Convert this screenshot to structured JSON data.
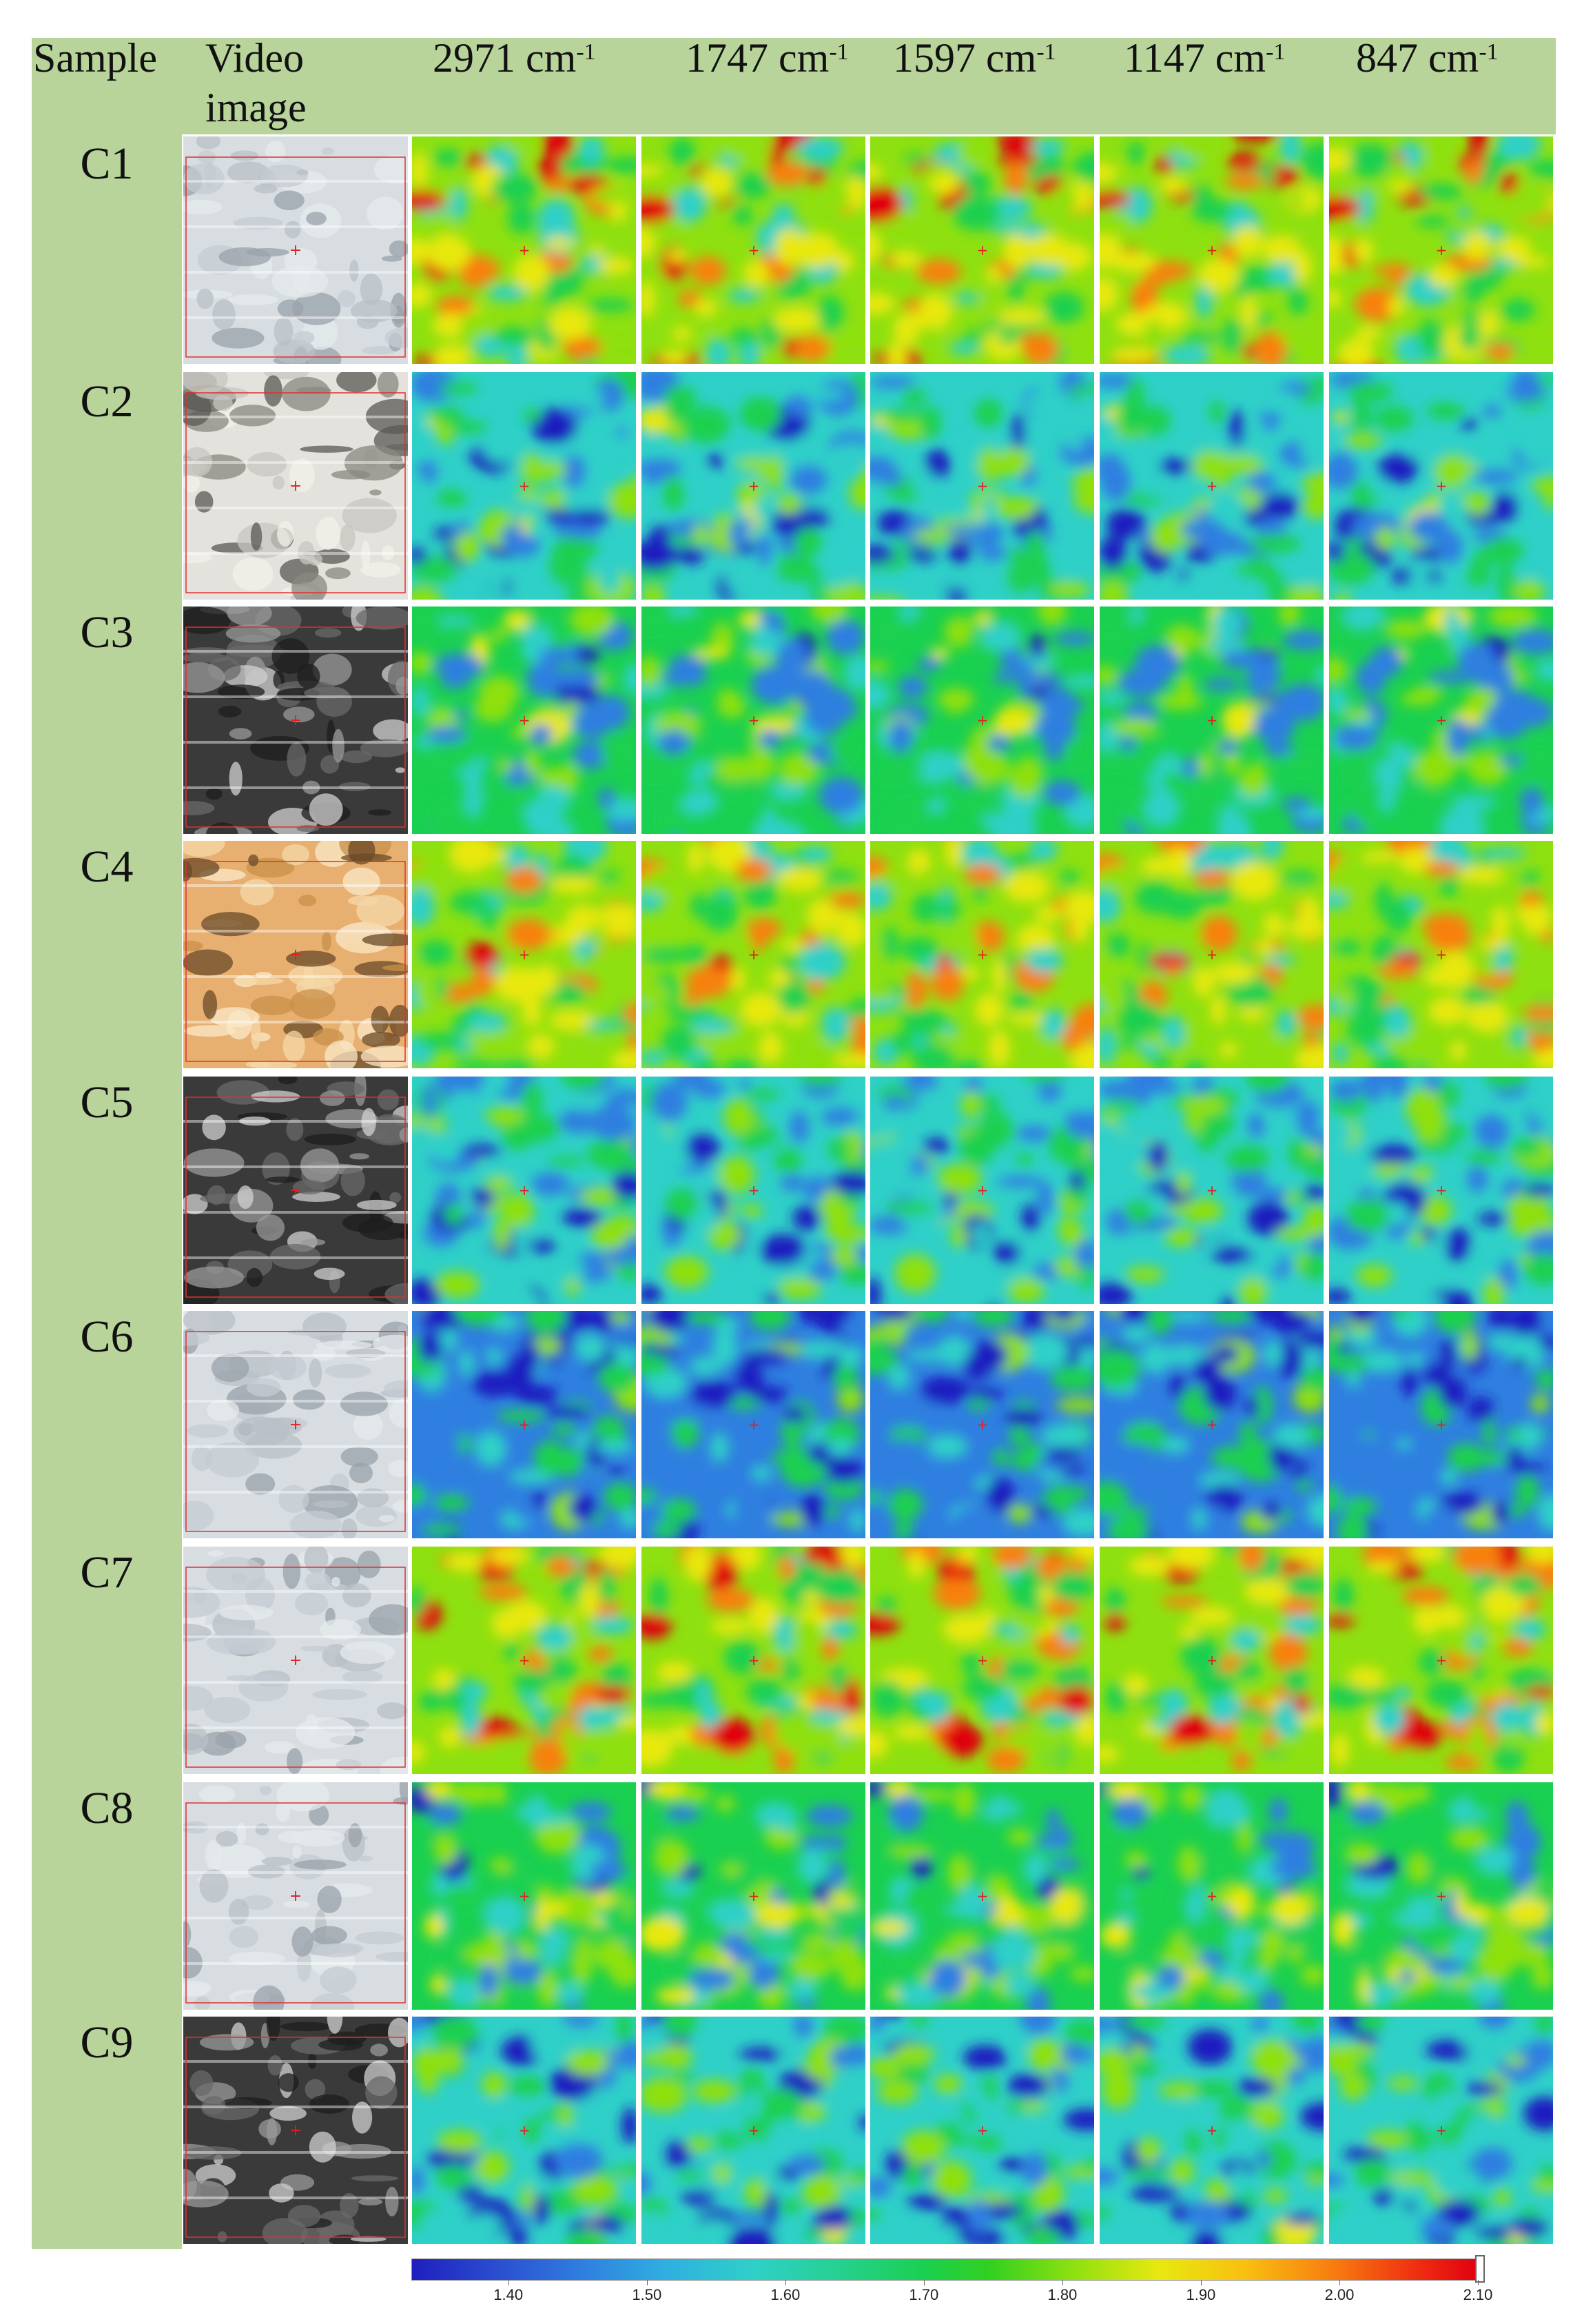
{
  "header": {
    "sample": "Sample",
    "video_line1": "Video",
    "video_line2": "image",
    "wavenumbers": [
      {
        "value": "2971",
        "unit": "cm",
        "exp": "-1"
      },
      {
        "value": "1747",
        "unit": "cm",
        "exp": "-1"
      },
      {
        "value": "1597",
        "unit": "cm",
        "exp": "-1"
      },
      {
        "value": "1147",
        "unit": "cm",
        "exp": "-1"
      },
      {
        "value": "847",
        "unit": "cm",
        "exp": "-1"
      }
    ]
  },
  "samples": [
    "C1",
    "C2",
    "C3",
    "C4",
    "C5",
    "C6",
    "C7",
    "C8",
    "C9"
  ],
  "sample_video_tone": [
    "light",
    "mixed",
    "dark",
    "amber",
    "dark",
    "light",
    "light",
    "light",
    "dark"
  ],
  "sample_map_level": [
    0.62,
    0.35,
    0.38,
    0.6,
    0.3,
    0.2,
    0.6,
    0.38,
    0.3
  ],
  "colorbar": {
    "ticks": [
      "1.40",
      "1.50",
      "1.60",
      "1.70",
      "1.80",
      "1.90",
      "2.00",
      "2.10"
    ],
    "min": 1.33,
    "max": 2.1,
    "colors": [
      "#1f1fbf",
      "#2f7fe0",
      "#2fd0c8",
      "#1ad050",
      "#8ee010",
      "#e8e810",
      "#f88010",
      "#e00010"
    ]
  }
}
